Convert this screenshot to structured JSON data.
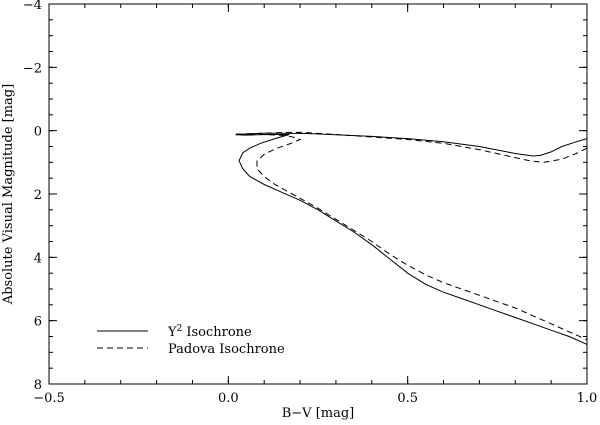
{
  "chart_data": {
    "type": "line",
    "title": "",
    "xlabel": "B−V [mag]",
    "ylabel": "Absolute Visual Magnitude [mag]",
    "xlim": [
      -0.5,
      1.0
    ],
    "ylim": [
      8,
      -4
    ],
    "y_inverted": true,
    "grid": false,
    "legend_position": "bottom-left",
    "x_ticks": [
      {
        "value": -0.5,
        "label": "−0.5"
      },
      {
        "value": 0.0,
        "label": "0.0"
      },
      {
        "value": 0.5,
        "label": "0.5"
      },
      {
        "value": 1.0,
        "label": "1.0"
      }
    ],
    "y_ticks": [
      {
        "value": -4,
        "label": "−4"
      },
      {
        "value": -2,
        "label": "−2"
      },
      {
        "value": 0,
        "label": "0"
      },
      {
        "value": 2,
        "label": "2"
      },
      {
        "value": 4,
        "label": "4"
      },
      {
        "value": 6,
        "label": "6"
      },
      {
        "value": 8,
        "label": "8"
      }
    ],
    "series": [
      {
        "name": "Isochrone",
        "name_prefix": "Y",
        "name_superscript": "2",
        "style": "solid",
        "x": [
          1.0,
          0.97,
          0.93,
          0.9,
          0.87,
          0.85,
          0.8,
          0.7,
          0.6,
          0.5,
          0.4,
          0.3,
          0.22,
          0.15,
          0.1,
          0.06,
          0.03,
          0.02,
          0.05,
          0.08,
          0.12,
          0.17,
          0.13,
          0.09,
          0.06,
          0.04,
          0.03,
          0.04,
          0.06,
          0.1,
          0.15,
          0.2,
          0.25,
          0.3,
          0.35,
          0.4,
          0.45,
          0.5,
          0.55,
          0.6,
          0.65,
          0.7,
          0.75,
          0.8,
          0.85,
          0.9,
          0.95,
          1.0
        ],
        "y": [
          0.25,
          0.35,
          0.5,
          0.67,
          0.78,
          0.8,
          0.72,
          0.5,
          0.35,
          0.25,
          0.18,
          0.13,
          0.09,
          0.08,
          0.08,
          0.1,
          0.12,
          0.13,
          0.14,
          0.13,
          0.12,
          0.12,
          0.25,
          0.4,
          0.55,
          0.7,
          0.95,
          1.2,
          1.45,
          1.7,
          1.95,
          2.2,
          2.5,
          2.85,
          3.2,
          3.6,
          4.05,
          4.5,
          4.85,
          5.1,
          5.3,
          5.5,
          5.7,
          5.9,
          6.1,
          6.3,
          6.5,
          6.75
        ]
      },
      {
        "name": "Padova Isochrone",
        "style": "dashed",
        "x": [
          1.0,
          0.97,
          0.93,
          0.88,
          0.84,
          0.8,
          0.7,
          0.6,
          0.5,
          0.4,
          0.3,
          0.2,
          0.15,
          0.1,
          0.05,
          0.02,
          0.05,
          0.1,
          0.15,
          0.18,
          0.2,
          0.17,
          0.13,
          0.1,
          0.08,
          0.08,
          0.1,
          0.13,
          0.17,
          0.21,
          0.25,
          0.3,
          0.35,
          0.4,
          0.45,
          0.5,
          0.55,
          0.6,
          0.65,
          0.7,
          0.75,
          0.8,
          0.85,
          0.9,
          0.95,
          1.0
        ],
        "y": [
          0.55,
          0.72,
          0.9,
          1.0,
          0.95,
          0.85,
          0.6,
          0.4,
          0.28,
          0.2,
          0.12,
          0.05,
          0.06,
          0.08,
          0.1,
          0.11,
          0.11,
          0.12,
          0.15,
          0.2,
          0.28,
          0.42,
          0.58,
          0.75,
          0.95,
          1.2,
          1.45,
          1.7,
          1.95,
          2.2,
          2.45,
          2.8,
          3.15,
          3.5,
          3.9,
          4.25,
          4.55,
          4.8,
          5.0,
          5.2,
          5.4,
          5.6,
          5.85,
          6.1,
          6.35,
          6.6
        ]
      }
    ]
  }
}
